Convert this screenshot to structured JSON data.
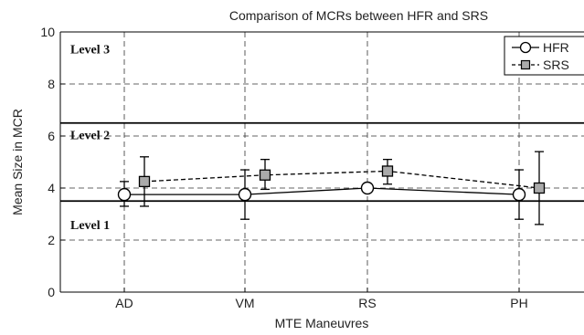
{
  "chart_data": {
    "type": "line",
    "title": "Comparison of MCRs between HFR and SRS",
    "xlabel": "MTE Maneuvres",
    "ylabel": "Mean Size in MCR",
    "categories": [
      "AD",
      "VM",
      "RS",
      "PH"
    ],
    "ylim": [
      0,
      10
    ],
    "yticks": [
      "0",
      "2",
      "4",
      "6",
      "8",
      "10"
    ],
    "grid": true,
    "legend_position": "top-right",
    "series": [
      {
        "name": "HFR",
        "values": [
          3.75,
          3.75,
          4.0,
          3.75
        ],
        "err_low": [
          3.3,
          2.8,
          4.0,
          2.8
        ],
        "err_high": [
          4.25,
          4.7,
          4.0,
          4.7
        ],
        "line_style": "solid",
        "marker": "circle",
        "marker_color": "#ffffff"
      },
      {
        "name": "SRS",
        "values": [
          4.25,
          4.5,
          4.65,
          4.0
        ],
        "err_low": [
          3.3,
          3.95,
          4.15,
          2.6
        ],
        "err_high": [
          5.2,
          5.1,
          5.1,
          5.4
        ],
        "line_style": "dashed",
        "marker": "square",
        "marker_color": "#aaaaaa"
      }
    ],
    "reference_lines": [
      {
        "y": 6.5,
        "label": "Level 2"
      },
      {
        "y": 3.5,
        "label": "Level 1"
      }
    ],
    "region_labels": [
      {
        "label": "Level 3",
        "y": 9.35
      },
      {
        "label": "Level 2",
        "y": 6.05
      },
      {
        "label": "Level 1",
        "y": 2.6
      }
    ]
  }
}
